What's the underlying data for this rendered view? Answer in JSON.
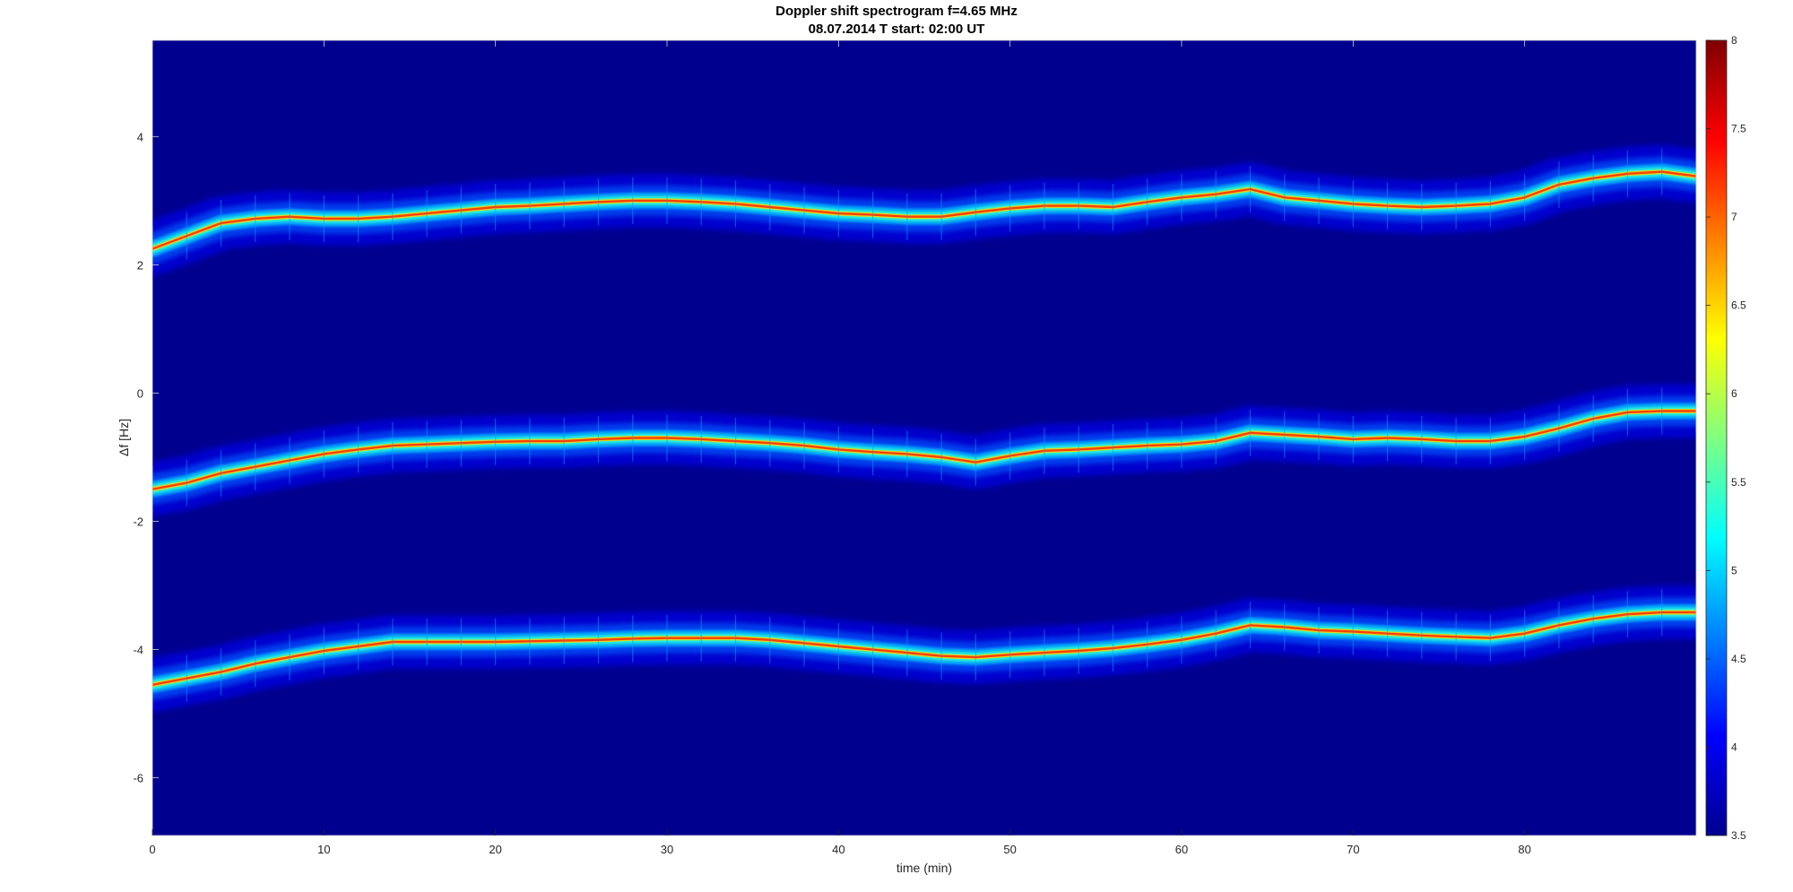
{
  "chart_data": {
    "type": "heatmap",
    "title": "Doppler shift spectrogram f=4.65 MHz",
    "subtitle": "08.07.2014   T start: 02:00 UT",
    "xlabel": "time (min)",
    "ylabel": "Δf [Hz]",
    "xlim": [
      0,
      90
    ],
    "ylim": [
      -6.9,
      5.5
    ],
    "x_ticks": [
      "0",
      "10",
      "20",
      "30",
      "40",
      "50",
      "60",
      "70",
      "80"
    ],
    "y_ticks": [
      "-6",
      "-4",
      "-2",
      "0",
      "2",
      "4"
    ],
    "colorbar": {
      "colormap": "jet",
      "limits": [
        3.5,
        8
      ],
      "ticks": [
        "3.5",
        "4",
        "4.5",
        "5",
        "5.5",
        "6",
        "6.5",
        "7",
        "7.5",
        "8"
      ]
    },
    "grid": false,
    "background_color": "#00008F",
    "traces": [
      {
        "x": [
          0,
          2,
          4,
          6,
          8,
          10,
          12,
          14,
          16,
          18,
          20,
          22,
          24,
          26,
          28,
          30,
          32,
          34,
          36,
          38,
          40,
          42,
          44,
          46,
          48,
          50,
          52,
          54,
          56,
          58,
          60,
          62,
          64,
          66,
          68,
          70,
          72,
          74,
          76,
          78,
          80,
          82,
          84,
          86,
          88,
          90
        ],
        "y": [
          2.25,
          2.45,
          2.65,
          2.72,
          2.75,
          2.72,
          2.72,
          2.75,
          2.8,
          2.85,
          2.9,
          2.92,
          2.95,
          2.98,
          3.0,
          3.0,
          2.98,
          2.95,
          2.9,
          2.85,
          2.8,
          2.78,
          2.75,
          2.75,
          2.82,
          2.88,
          2.92,
          2.92,
          2.9,
          2.98,
          3.05,
          3.1,
          3.18,
          3.05,
          3.0,
          2.95,
          2.92,
          2.9,
          2.92,
          2.95,
          3.05,
          3.25,
          3.35,
          3.42,
          3.45,
          3.38
        ]
      },
      {
        "x": [
          0,
          2,
          4,
          6,
          8,
          10,
          12,
          14,
          16,
          18,
          20,
          22,
          24,
          26,
          28,
          30,
          32,
          34,
          36,
          38,
          40,
          42,
          44,
          46,
          48,
          50,
          52,
          54,
          56,
          58,
          60,
          62,
          64,
          66,
          68,
          70,
          72,
          74,
          76,
          78,
          80,
          82,
          84,
          86,
          88,
          90
        ],
        "y": [
          -1.5,
          -1.4,
          -1.25,
          -1.15,
          -1.05,
          -0.95,
          -0.88,
          -0.82,
          -0.8,
          -0.78,
          -0.76,
          -0.75,
          -0.75,
          -0.72,
          -0.7,
          -0.7,
          -0.72,
          -0.75,
          -0.78,
          -0.82,
          -0.88,
          -0.92,
          -0.95,
          -1.0,
          -1.08,
          -0.98,
          -0.9,
          -0.88,
          -0.85,
          -0.82,
          -0.8,
          -0.75,
          -0.62,
          -0.65,
          -0.68,
          -0.72,
          -0.7,
          -0.72,
          -0.75,
          -0.75,
          -0.68,
          -0.55,
          -0.4,
          -0.3,
          -0.28,
          -0.28
        ]
      },
      {
        "x": [
          0,
          2,
          4,
          6,
          8,
          10,
          12,
          14,
          16,
          18,
          20,
          22,
          24,
          26,
          28,
          30,
          32,
          34,
          36,
          38,
          40,
          42,
          44,
          46,
          48,
          50,
          52,
          54,
          56,
          58,
          60,
          62,
          64,
          66,
          68,
          70,
          72,
          74,
          76,
          78,
          80,
          82,
          84,
          86,
          88,
          90
        ],
        "y": [
          -4.55,
          -4.45,
          -4.35,
          -4.22,
          -4.12,
          -4.02,
          -3.95,
          -3.88,
          -3.88,
          -3.88,
          -3.88,
          -3.87,
          -3.86,
          -3.85,
          -3.83,
          -3.82,
          -3.82,
          -3.82,
          -3.85,
          -3.9,
          -3.95,
          -4.0,
          -4.05,
          -4.1,
          -4.12,
          -4.08,
          -4.05,
          -4.02,
          -3.98,
          -3.92,
          -3.85,
          -3.75,
          -3.62,
          -3.65,
          -3.7,
          -3.72,
          -3.75,
          -3.78,
          -3.8,
          -3.82,
          -3.75,
          -3.62,
          -3.52,
          -3.45,
          -3.42,
          -3.42
        ]
      }
    ]
  }
}
